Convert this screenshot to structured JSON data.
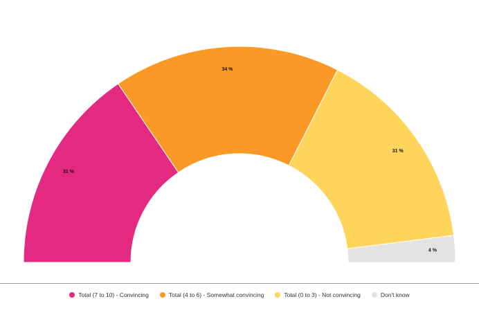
{
  "chart_data": {
    "type": "pie",
    "variant": "semi-donut",
    "legend_position": "bottom",
    "series": [
      {
        "name": "Total (7 to 10) - Convincing",
        "value": 31,
        "label": "31 %",
        "color": "#e32a80"
      },
      {
        "name": "Total (4 to 6) - Somewhat convincing",
        "value": 34,
        "label": "34 %",
        "color": "#fb9927"
      },
      {
        "name": "Total (0 to 3) - Not convincing",
        "value": 31,
        "label": "31 %",
        "color": "#fed45a"
      },
      {
        "name": "Don't know",
        "value": 4,
        "label": "4 %",
        "color": "#e3e3e3"
      }
    ]
  }
}
